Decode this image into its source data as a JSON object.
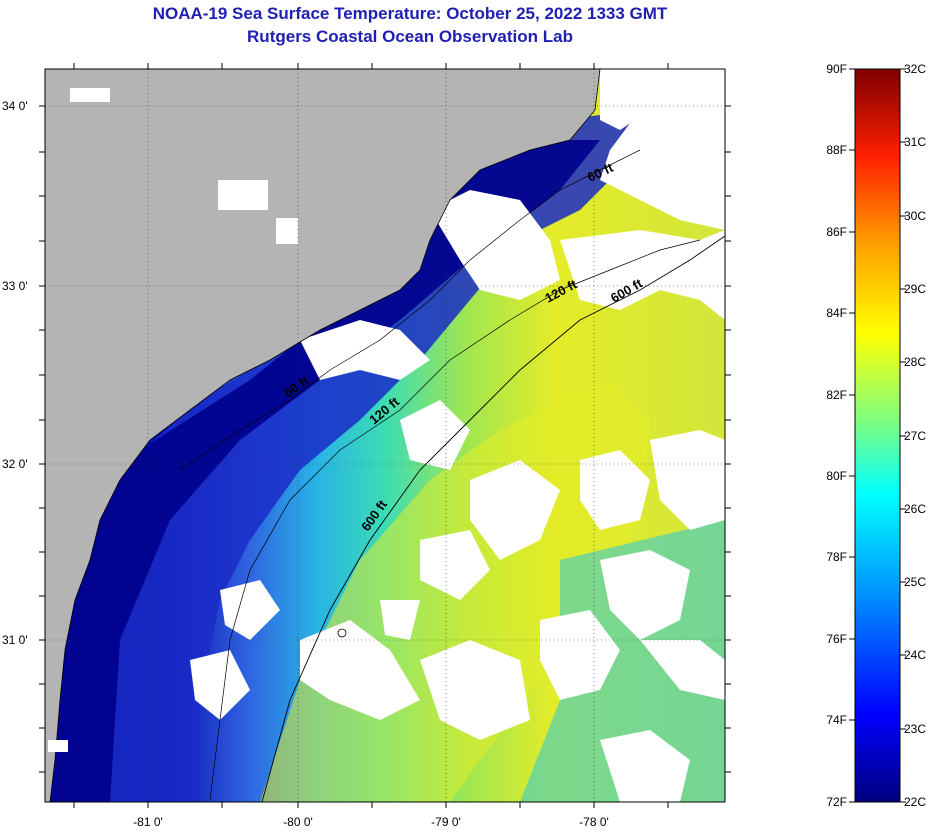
{
  "title": "NOAA-19 Sea Surface Temperature:  October 25, 2022 1333 GMT",
  "subtitle": "Rutgers Coastal Ocean Observation Lab",
  "map": {
    "lat_labels": [
      "34 0'",
      "33 0'",
      "32 0'",
      "31 0'"
    ],
    "lon_labels": [
      "-81 0'",
      "-80 0'",
      "-79 0'",
      "-78 0'"
    ],
    "contours": {
      "c60_label_north": "60 ft",
      "c60_label_south": "60 ft",
      "c120_label_north": "120 ft",
      "c120_label_south": "120 ft",
      "c600_label_north": "600 ft",
      "c600_label_south": "600 ft"
    }
  },
  "colorbar": {
    "fahrenheit_labels": [
      "90F",
      "88F",
      "86F",
      "84F",
      "82F",
      "80F",
      "78F",
      "76F",
      "74F",
      "72F"
    ],
    "celsius_labels": [
      "32C",
      "31C",
      "30C",
      "29C",
      "28C",
      "27C",
      "26C",
      "25C",
      "24C",
      "23C",
      "22C"
    ]
  },
  "colors": {
    "title": "#1f1fb4",
    "land": "#b4b4b4",
    "cloud": "#ffffff",
    "cold": "#00008c",
    "warm": "#e8e800"
  }
}
